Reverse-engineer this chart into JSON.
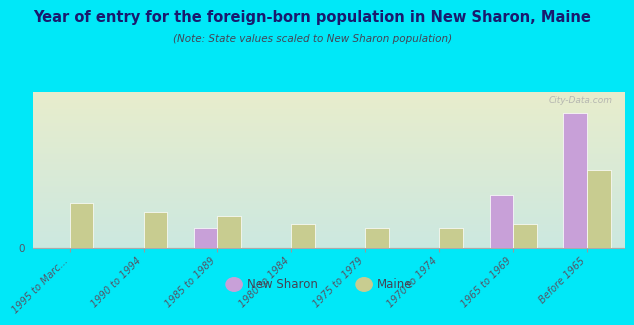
{
  "title": "Year of entry for the foreign-born population in New Sharon, Maine",
  "subtitle": "(Note: State values scaled to New Sharon population)",
  "categories": [
    "1995 to Marc...",
    "1990 to 1994",
    "1985 to 1989",
    "1980 to 1984",
    "1975 to 1979",
    "1970 to 1974",
    "1965 to 1969",
    "Before 1965"
  ],
  "new_sharon": [
    0,
    0,
    5,
    0,
    0,
    0,
    13,
    33
  ],
  "maine": [
    11,
    9,
    8,
    6,
    5,
    5,
    6,
    19
  ],
  "new_sharon_color": "#c8a0d8",
  "maine_color": "#c8cc90",
  "background_color": "#00e8f8",
  "grad_top_left": "#e8edcc",
  "grad_bottom_right": "#cce8e0",
  "bar_width": 0.32,
  "ylim": [
    0,
    38
  ],
  "watermark": "City-Data.com",
  "legend_new_sharon": "New Sharon",
  "legend_maine": "Maine",
  "title_color": "#1a1a6e",
  "subtitle_color": "#444455",
  "tick_color": "#555566"
}
